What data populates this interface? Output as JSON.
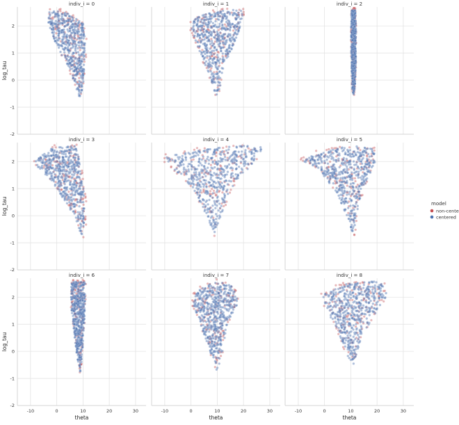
{
  "chart_data": {
    "type": "scatter",
    "title": "",
    "xlabel": "theta",
    "ylabel": "log_tau",
    "xlim": [
      -15,
      34
    ],
    "ylim": [
      -2,
      2.7
    ],
    "xticks": [
      -10,
      0,
      10,
      20,
      30
    ],
    "yticks": [
      -2,
      -1,
      0,
      1,
      2
    ],
    "grid": true,
    "legend": {
      "title": "model",
      "placement": "right",
      "entries": [
        {
          "name": "non-centered",
          "color": "#c44e52"
        },
        {
          "name": "centered",
          "color": "#4c72b0"
        }
      ]
    },
    "series": [
      {
        "name": "non-centered",
        "color": "#c44e52"
      },
      {
        "name": "centered",
        "color": "#4c72b0"
      }
    ],
    "facets": [
      {
        "title": "indiv_i = 0",
        "shape": [
          [
            -3.5,
            2.55
          ],
          [
            2.5,
            2.55
          ],
          [
            10,
            2.1
          ],
          [
            11,
            1.3
          ],
          [
            10,
            -0.3
          ],
          [
            8.5,
            -0.75
          ],
          [
            7.5,
            -0.3
          ],
          [
            4,
            0.5
          ],
          [
            -1,
            1.5
          ],
          [
            -3.5,
            2.2
          ]
        ]
      },
      {
        "title": "indiv_i = 1",
        "shape": [
          [
            1,
            2.3
          ],
          [
            8,
            2.5
          ],
          [
            15,
            2.6
          ],
          [
            20,
            2.55
          ],
          [
            18,
            1.7
          ],
          [
            13,
            0.6
          ],
          [
            10,
            -0.75
          ],
          [
            8,
            -0.1
          ],
          [
            4,
            0.9
          ],
          [
            0,
            1.8
          ]
        ]
      },
      {
        "title": "indiv_i = 2",
        "shape": [
          [
            10.3,
            2.6
          ],
          [
            11.7,
            2.6
          ],
          [
            12,
            1.9
          ],
          [
            11.9,
            0.5
          ],
          [
            11.5,
            -0.4
          ],
          [
            11,
            -0.55
          ],
          [
            10.5,
            -0.3
          ],
          [
            10.2,
            0.9
          ],
          [
            10.1,
            1.9
          ]
        ]
      },
      {
        "title": "indiv_i = 3",
        "shape": [
          [
            -8,
            2.05
          ],
          [
            -2,
            2.5
          ],
          [
            7,
            2.6
          ],
          [
            8.5,
            2.1
          ],
          [
            10.5,
            0.8
          ],
          [
            10.5,
            -0.3
          ],
          [
            9.5,
            -0.75
          ],
          [
            6,
            0.1
          ],
          [
            -2,
            1.3
          ],
          [
            -8,
            1.85
          ]
        ]
      },
      {
        "title": "indiv_i = 4",
        "shape": [
          [
            -10,
            2.2
          ],
          [
            -6,
            2.25
          ],
          [
            5,
            2.45
          ],
          [
            20,
            2.6
          ],
          [
            28,
            2.6
          ],
          [
            24,
            2
          ],
          [
            16,
            1.1
          ],
          [
            11,
            -0.1
          ],
          [
            9,
            -0.75
          ],
          [
            6,
            0
          ],
          [
            0,
            1.1
          ],
          [
            -9,
            1.95
          ]
        ]
      },
      {
        "title": "indiv_i = 5",
        "shape": [
          [
            -8,
            2.05
          ],
          [
            -3,
            2.3
          ],
          [
            10,
            2.6
          ],
          [
            18,
            2.5
          ],
          [
            20,
            2.1
          ],
          [
            15,
            1.1
          ],
          [
            12,
            0
          ],
          [
            11,
            -0.75
          ],
          [
            9.5,
            -0.3
          ],
          [
            5,
            0.8
          ],
          [
            -2,
            1.7
          ],
          [
            -8,
            2
          ]
        ]
      },
      {
        "title": "indiv_i = 6",
        "shape": [
          [
            5.5,
            2.6
          ],
          [
            11,
            2.55
          ],
          [
            11,
            1.9
          ],
          [
            10.2,
            0.6
          ],
          [
            9.5,
            -0.3
          ],
          [
            9,
            -0.8
          ],
          [
            7.7,
            -0.2
          ],
          [
            6.7,
            0.6
          ],
          [
            5.5,
            1.6
          ]
        ]
      },
      {
        "title": "indiv_i = 7",
        "shape": [
          [
            1,
            2.05
          ],
          [
            4,
            2.35
          ],
          [
            10,
            2.6
          ],
          [
            16,
            2.4
          ],
          [
            18,
            1.8
          ],
          [
            14,
            1
          ],
          [
            12,
            0
          ],
          [
            10,
            -0.75
          ],
          [
            8,
            -0.2
          ],
          [
            4,
            0.9
          ],
          [
            1,
            1.7
          ]
        ]
      },
      {
        "title": "indiv_i = 8",
        "shape": [
          [
            -1,
            2.1
          ],
          [
            6,
            2.45
          ],
          [
            14,
            2.55
          ],
          [
            21,
            2.6
          ],
          [
            24,
            2.1
          ],
          [
            20,
            1.5
          ],
          [
            14,
            0.5
          ],
          [
            11,
            -0.5
          ],
          [
            9,
            -0.2
          ],
          [
            5,
            0.8
          ],
          [
            1,
            1.5
          ]
        ]
      }
    ]
  }
}
